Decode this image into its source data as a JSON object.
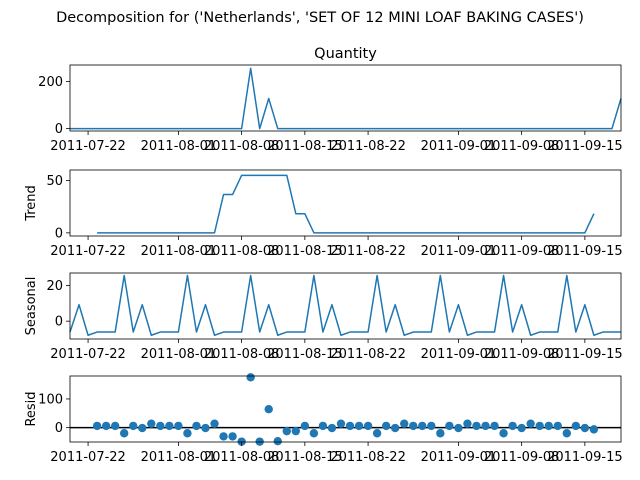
{
  "figure": {
    "title": "Decomposition for ('Netherlands', 'SET OF 12 MINI LOAF BAKING CASES')",
    "line_color": "#1f77b4",
    "zero_line_color": "#000000"
  },
  "chart_data": [
    {
      "type": "line",
      "panel": "observed",
      "title": "Quantity",
      "ylabel": "",
      "x_start": "2011-07-20",
      "x_step_days": 1,
      "xlim": [
        0,
        61
      ],
      "ylim": [
        -10,
        270
      ],
      "yticks": [
        0,
        200
      ],
      "xticks": [
        {
          "day": 2,
          "label": "2011-07-22"
        },
        {
          "day": 12,
          "label": "2011-08-01"
        },
        {
          "day": 19,
          "label": "2011-08-08"
        },
        {
          "day": 26,
          "label": "2011-08-15"
        },
        {
          "day": 33,
          "label": "2011-08-22"
        },
        {
          "day": 43,
          "label": "2011-09-01"
        },
        {
          "day": 50,
          "label": "2011-09-08"
        },
        {
          "day": 57,
          "label": "2011-09-15"
        }
      ],
      "x": [
        0,
        1,
        2,
        3,
        4,
        5,
        6,
        7,
        8,
        9,
        10,
        11,
        12,
        13,
        14,
        15,
        16,
        17,
        18,
        19,
        20,
        21,
        22,
        23,
        24,
        25,
        26,
        27,
        28,
        29,
        30,
        31,
        32,
        33,
        34,
        35,
        36,
        37,
        38,
        39,
        40,
        41,
        42,
        43,
        44,
        45,
        46,
        47,
        48,
        49,
        50,
        51,
        52,
        53,
        54,
        55,
        56,
        57,
        58,
        59,
        60,
        61
      ],
      "values": [
        0,
        0,
        0,
        0,
        0,
        0,
        0,
        0,
        0,
        0,
        0,
        0,
        0,
        0,
        0,
        0,
        0,
        0,
        0,
        0,
        256,
        0,
        128,
        0,
        0,
        0,
        0,
        0,
        0,
        0,
        0,
        0,
        0,
        0,
        0,
        0,
        0,
        0,
        0,
        0,
        0,
        0,
        0,
        0,
        0,
        0,
        0,
        0,
        0,
        0,
        0,
        0,
        0,
        0,
        0,
        0,
        0,
        0,
        0,
        0,
        0,
        128
      ]
    },
    {
      "type": "line",
      "panel": "trend",
      "title": "",
      "ylabel": "Trend",
      "x_start": "2011-07-20",
      "x_step_days": 1,
      "xlim": [
        0,
        61
      ],
      "ylim": [
        -3,
        60
      ],
      "yticks": [
        0,
        50
      ],
      "xticks": [
        {
          "day": 2,
          "label": "2011-07-22"
        },
        {
          "day": 12,
          "label": "2011-08-01"
        },
        {
          "day": 19,
          "label": "2011-08-08"
        },
        {
          "day": 26,
          "label": "2011-08-15"
        },
        {
          "day": 33,
          "label": "2011-08-22"
        },
        {
          "day": 43,
          "label": "2011-09-01"
        },
        {
          "day": 50,
          "label": "2011-09-08"
        },
        {
          "day": 57,
          "label": "2011-09-15"
        }
      ],
      "x": [
        3,
        4,
        5,
        6,
        7,
        8,
        9,
        10,
        11,
        12,
        13,
        14,
        15,
        16,
        17,
        18,
        19,
        20,
        21,
        22,
        23,
        24,
        25,
        26,
        27,
        28,
        29,
        30,
        31,
        32,
        33,
        34,
        35,
        36,
        37,
        38,
        39,
        40,
        41,
        42,
        43,
        44,
        45,
        46,
        47,
        48,
        49,
        50,
        51,
        52,
        53,
        54,
        55,
        56,
        57,
        58
      ],
      "values": [
        0,
        0,
        0,
        0,
        0,
        0,
        0,
        0,
        0,
        0,
        0,
        0,
        0,
        0,
        36.6,
        36.6,
        54.9,
        54.9,
        54.9,
        54.9,
        54.9,
        54.9,
        18.3,
        18.3,
        0,
        0,
        0,
        0,
        0,
        0,
        0,
        0,
        0,
        0,
        0,
        0,
        0,
        0,
        0,
        0,
        0,
        0,
        0,
        0,
        0,
        0,
        0,
        0,
        0,
        0,
        0,
        0,
        0,
        0,
        0,
        18.3
      ]
    },
    {
      "type": "line",
      "panel": "seasonal",
      "title": "",
      "ylabel": "Seasonal",
      "x_start": "2011-07-20",
      "x_step_days": 1,
      "xlim": [
        0,
        61
      ],
      "ylim": [
        -10,
        27
      ],
      "yticks": [
        0,
        20
      ],
      "xticks": [
        {
          "day": 2,
          "label": "2011-07-22"
        },
        {
          "day": 12,
          "label": "2011-08-01"
        },
        {
          "day": 19,
          "label": "2011-08-08"
        },
        {
          "day": 26,
          "label": "2011-08-15"
        },
        {
          "day": 33,
          "label": "2011-08-22"
        },
        {
          "day": 43,
          "label": "2011-09-01"
        },
        {
          "day": 50,
          "label": "2011-09-08"
        },
        {
          "day": 57,
          "label": "2011-09-15"
        }
      ],
      "x": [
        0,
        1,
        2,
        3,
        4,
        5,
        6,
        7,
        8,
        9,
        10,
        11,
        12,
        13,
        14,
        15,
        16,
        17,
        18,
        19,
        20,
        21,
        22,
        23,
        24,
        25,
        26,
        27,
        28,
        29,
        30,
        31,
        32,
        33,
        34,
        35,
        36,
        37,
        38,
        39,
        40,
        41,
        42,
        43,
        44,
        45,
        46,
        47,
        48,
        49,
        50,
        51,
        52,
        53,
        54,
        55,
        56,
        57,
        58,
        59,
        60,
        61
      ],
      "values": [
        -6.1,
        9.2,
        -7.9,
        -6.1,
        -6.1,
        -6.1,
        25.6,
        -6.1,
        9.2,
        -7.9,
        -6.1,
        -6.1,
        -6.1,
        25.6,
        -6.1,
        9.2,
        -7.9,
        -6.1,
        -6.1,
        -6.1,
        25.6,
        -6.1,
        9.2,
        -7.9,
        -6.1,
        -6.1,
        -6.1,
        25.6,
        -6.1,
        9.2,
        -7.9,
        -6.1,
        -6.1,
        -6.1,
        25.6,
        -6.1,
        9.2,
        -7.9,
        -6.1,
        -6.1,
        -6.1,
        25.6,
        -6.1,
        9.2,
        -7.9,
        -6.1,
        -6.1,
        -6.1,
        25.6,
        -6.1,
        9.2,
        -7.9,
        -6.1,
        -6.1,
        -6.1,
        25.6,
        -6.1,
        9.2,
        -7.9,
        -6.1,
        -6.1,
        -6.1
      ]
    },
    {
      "type": "scatter",
      "panel": "resid",
      "title": "",
      "ylabel": "Resid",
      "x_start": "2011-07-20",
      "x_step_days": 1,
      "xlim": [
        0,
        61
      ],
      "ylim": [
        -50,
        180
      ],
      "yticks": [
        0,
        100
      ],
      "zero_line": true,
      "xticks": [
        {
          "day": 2,
          "label": "2011-07-22"
        },
        {
          "day": 12,
          "label": "2011-08-01"
        },
        {
          "day": 19,
          "label": "2011-08-08"
        },
        {
          "day": 26,
          "label": "2011-08-15"
        },
        {
          "day": 33,
          "label": "2011-08-22"
        },
        {
          "day": 43,
          "label": "2011-09-01"
        },
        {
          "day": 50,
          "label": "2011-09-08"
        },
        {
          "day": 57,
          "label": "2011-09-15"
        }
      ],
      "x": [
        3,
        4,
        5,
        6,
        7,
        8,
        9,
        10,
        11,
        12,
        13,
        14,
        15,
        16,
        17,
        18,
        19,
        20,
        21,
        22,
        23,
        24,
        25,
        26,
        27,
        28,
        29,
        30,
        31,
        32,
        33,
        34,
        35,
        36,
        37,
        38,
        39,
        40,
        41,
        42,
        43,
        44,
        45,
        46,
        47,
        48,
        49,
        50,
        51,
        52,
        53,
        54,
        55,
        56,
        57,
        58
      ],
      "values": [
        6.1,
        6.1,
        6.1,
        -19.5,
        6.1,
        -1.3,
        13.9,
        6.1,
        6.1,
        6.1,
        -19.5,
        6.1,
        -1.3,
        13.9,
        -30.5,
        -30.5,
        -48.8,
        175.5,
        -48.8,
        64.3,
        -47.1,
        -12.2,
        -12.2,
        6.1,
        -19.5,
        6.1,
        -1.3,
        13.9,
        6.1,
        6.1,
        6.1,
        -19.5,
        6.1,
        -1.3,
        13.9,
        6.1,
        6.1,
        6.1,
        -19.5,
        6.1,
        -1.3,
        13.9,
        6.1,
        6.1,
        6.1,
        -19.5,
        6.1,
        -1.3,
        13.9,
        6.1,
        6.1,
        6.1,
        -19.5,
        6.1,
        -1.3,
        -6.0
      ]
    }
  ]
}
